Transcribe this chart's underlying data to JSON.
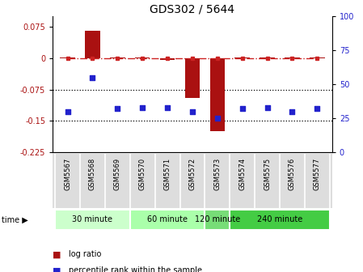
{
  "title": "GDS302 / 5644",
  "samples": [
    "GSM5567",
    "GSM5568",
    "GSM5569",
    "GSM5570",
    "GSM5571",
    "GSM5572",
    "GSM5573",
    "GSM5574",
    "GSM5575",
    "GSM5576",
    "GSM5577"
  ],
  "log_ratio": [
    0.002,
    0.065,
    0.002,
    0.001,
    -0.005,
    -0.095,
    -0.175,
    0.001,
    0.002,
    0.001,
    0.001
  ],
  "percentile": [
    30,
    55,
    32,
    33,
    33,
    30,
    25,
    32,
    33,
    30,
    32
  ],
  "ylim_left": [
    -0.225,
    0.1
  ],
  "ylim_right": [
    0,
    100
  ],
  "yticks_left": [
    0.075,
    0,
    -0.075,
    -0.15,
    -0.225
  ],
  "yticks_right": [
    100,
    75,
    50,
    25,
    0
  ],
  "hlines": [
    -0.075,
    -0.15
  ],
  "bar_color": "#AA1111",
  "scatter_color": "#2222CC",
  "dashed_line_color": "#CC2222",
  "background_color": "#ffffff",
  "plot_bg": "#ffffff",
  "time_groups": [
    {
      "label": "30 minute",
      "start": 0,
      "end": 3,
      "color": "#ccffcc"
    },
    {
      "label": "60 minute",
      "start": 3,
      "end": 6,
      "color": "#aaffaa"
    },
    {
      "label": "120 minute",
      "start": 6,
      "end": 7,
      "color": "#77dd77"
    },
    {
      "label": "240 minute",
      "start": 7,
      "end": 11,
      "color": "#44cc44"
    }
  ],
  "legend_items": [
    {
      "label": "log ratio",
      "color": "#AA1111"
    },
    {
      "label": "percentile rank within the sample",
      "color": "#2222CC"
    }
  ],
  "time_label": "time",
  "title_fontsize": 10
}
